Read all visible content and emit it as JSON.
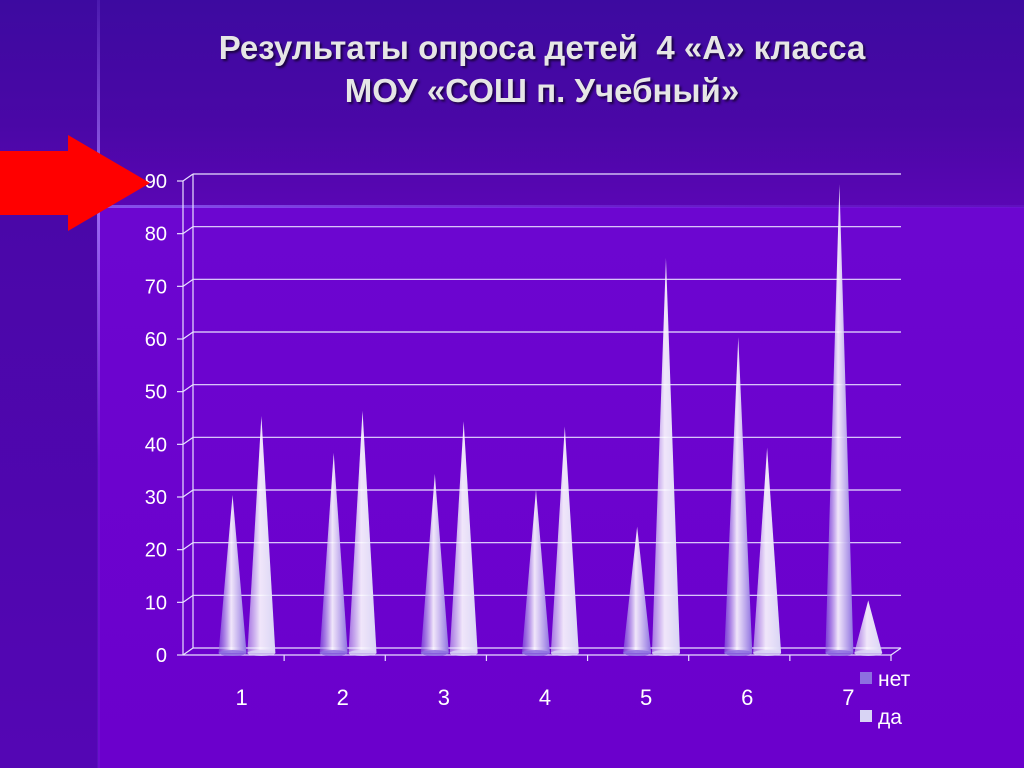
{
  "slide": {
    "title_line1": "Результаты опроса детей  4 «А» класса",
    "title_line2": "МОУ «СОШ п. Учебный»"
  },
  "colors": {
    "grid": "#e8e0ff",
    "axis_text": "#ffffff",
    "arrow": "#ff0000"
  },
  "chart_data": {
    "type": "bar",
    "style": "cone",
    "categories": [
      "1",
      "2",
      "3",
      "4",
      "5",
      "6",
      "7"
    ],
    "series": [
      {
        "name": "нет",
        "values": [
          30,
          38,
          34,
          31,
          24,
          60,
          89
        ],
        "color": "#8d6fe0"
      },
      {
        "name": "да",
        "values": [
          45,
          46,
          44,
          43,
          75,
          39,
          10
        ],
        "color": "#d8d4f4"
      }
    ],
    "ylim": [
      0,
      90
    ],
    "yticks": [
      "0",
      "10",
      "20",
      "30",
      "40",
      "50",
      "60",
      "70",
      "80",
      "90"
    ],
    "grid": true,
    "legend": "bottom-right"
  }
}
